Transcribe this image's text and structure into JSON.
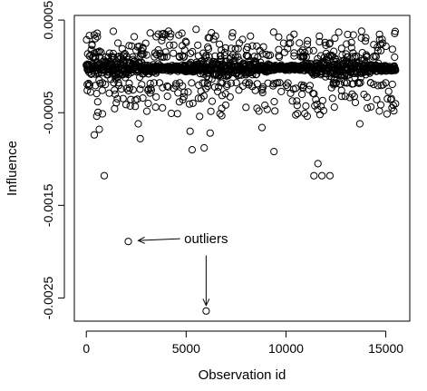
{
  "chart_data": {
    "type": "scatter",
    "title": "",
    "xlabel": "Observation id",
    "ylabel": "Influence",
    "xlim": [
      -600,
      16200
    ],
    "ylim": [
      -0.00275,
      0.00055
    ],
    "x_ticks": [
      0,
      5000,
      10000,
      15000
    ],
    "x_tick_labels": [
      "0",
      "5000",
      "10000",
      "15000"
    ],
    "y_ticks": [
      0.0005,
      -0.0005,
      -0.0015,
      -0.0025
    ],
    "y_tick_labels": [
      "0.0005",
      "-0.0005",
      "-0.0015",
      "-0.0025"
    ],
    "grid": false,
    "marker": "open-circle",
    "n_observations": 15500,
    "band_center": -2e-05,
    "band_halfwidth": 0.00012,
    "points": [
      {
        "x": 2100,
        "y": -0.00189
      },
      {
        "x": 6000,
        "y": -0.00264
      },
      {
        "x": 900,
        "y": -0.00118
      },
      {
        "x": 11600,
        "y": -0.00105
      },
      {
        "x": 11800,
        "y": -0.00118
      },
      {
        "x": 12200,
        "y": -0.00118
      },
      {
        "x": 11400,
        "y": -0.00118
      },
      {
        "x": 9400,
        "y": -0.00092
      },
      {
        "x": 5300,
        "y": -0.0009
      },
      {
        "x": 5900,
        "y": -0.00088
      },
      {
        "x": 400,
        "y": -0.00074
      },
      {
        "x": 650,
        "y": -0.00068
      },
      {
        "x": 2700,
        "y": -0.00078
      },
      {
        "x": 2600,
        "y": -0.00062
      },
      {
        "x": 15400,
        "y": -0.00048
      },
      {
        "x": 13700,
        "y": -0.00062
      },
      {
        "x": 11700,
        "y": -0.00052
      },
      {
        "x": 8800,
        "y": -0.00066
      },
      {
        "x": 5200,
        "y": -0.0007
      },
      {
        "x": 6200,
        "y": -0.00072
      },
      {
        "x": 3100,
        "y": -0.0004
      },
      {
        "x": 5500,
        "y": 0.0004
      },
      {
        "x": 3200,
        "y": 0.00036
      },
      {
        "x": 4200,
        "y": 0.00032
      },
      {
        "x": 2400,
        "y": 0.00032
      },
      {
        "x": 7300,
        "y": 0.00032
      },
      {
        "x": 10200,
        "y": 0.00031
      }
    ],
    "annotations": [
      {
        "text": "outliers",
        "x": 4900,
        "y": -0.00186
      },
      {
        "text": "←",
        "from_x": 4700,
        "from_y": -0.00186,
        "to_x": 2600,
        "to_y": -0.00188
      },
      {
        "text": "↓",
        "from_x": 6000,
        "from_y": -0.00204,
        "to_x": 6000,
        "to_y": -0.00258
      }
    ]
  }
}
